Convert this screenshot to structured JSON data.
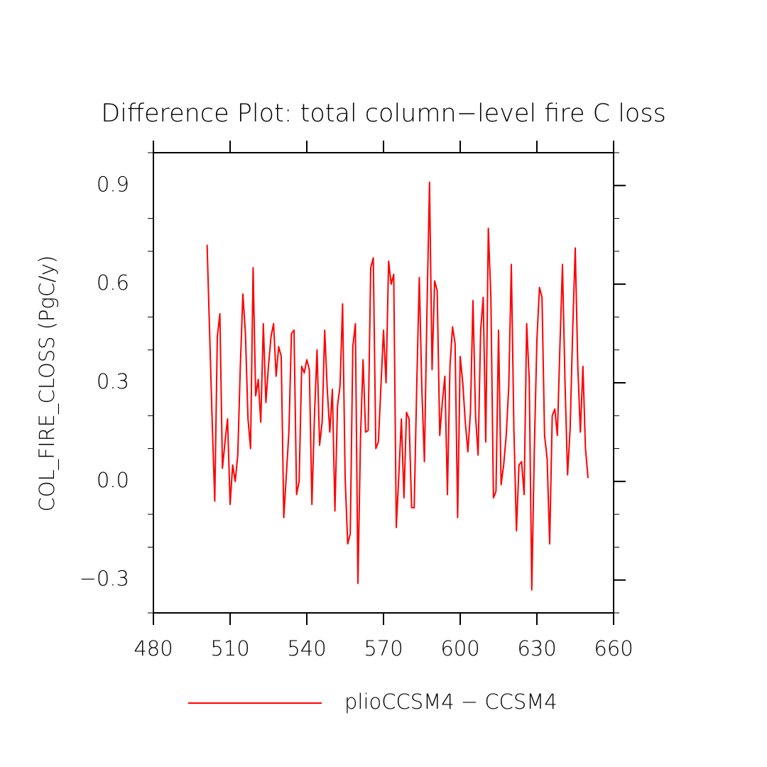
{
  "chart_data": {
    "type": "line",
    "title": "Difference Plot: total column−level fire C loss",
    "y_label": "COL_FIRE_CLOSS  (PgC/y)",
    "x": [
      501,
      502,
      503,
      504,
      505,
      506,
      507,
      508,
      509,
      510,
      511,
      512,
      513,
      514,
      515,
      516,
      517,
      518,
      519,
      520,
      521,
      522,
      523,
      524,
      525,
      526,
      527,
      528,
      529,
      530,
      531,
      532,
      533,
      534,
      535,
      536,
      537,
      538,
      539,
      540,
      541,
      542,
      543,
      544,
      545,
      546,
      547,
      548,
      549,
      550,
      551,
      552,
      553,
      554,
      555,
      556,
      557,
      558,
      559,
      560,
      561,
      562,
      563,
      564,
      565,
      566,
      567,
      568,
      569,
      570,
      571,
      572,
      573,
      574,
      575,
      576,
      577,
      578,
      579,
      580,
      581,
      582,
      583,
      584,
      585,
      586,
      587,
      588,
      589,
      590,
      591,
      592,
      593,
      594,
      595,
      596,
      597,
      598,
      599,
      600,
      601,
      602,
      603,
      604,
      605,
      606,
      607,
      608,
      609,
      610,
      611,
      612,
      613,
      614,
      615,
      616,
      617,
      618,
      619,
      620,
      621,
      622,
      623,
      624,
      625,
      626,
      627,
      628,
      629,
      630,
      631,
      632,
      633,
      634,
      635,
      636,
      637,
      638,
      639,
      640,
      641,
      642,
      643,
      644,
      645,
      646,
      647,
      648,
      649,
      650
    ],
    "series": [
      {
        "name": "plioCCSM4 − CCSM4",
        "color": "#ff0000",
        "values": [
          0.72,
          0.45,
          0.18,
          -0.06,
          0.44,
          0.51,
          0.04,
          0.12,
          0.19,
          -0.07,
          0.05,
          0.0,
          0.08,
          0.35,
          0.57,
          0.45,
          0.19,
          0.1,
          0.65,
          0.26,
          0.31,
          0.18,
          0.48,
          0.24,
          0.35,
          0.44,
          0.48,
          0.32,
          0.41,
          0.38,
          -0.11,
          0.02,
          0.15,
          0.45,
          0.46,
          -0.04,
          0.0,
          0.35,
          0.33,
          0.37,
          0.34,
          -0.07,
          0.2,
          0.4,
          0.11,
          0.18,
          0.46,
          0.28,
          0.15,
          0.28,
          -0.09,
          0.23,
          0.29,
          0.54,
          0.01,
          -0.19,
          -0.16,
          0.41,
          0.48,
          -0.31,
          0.13,
          0.37,
          0.15,
          0.155,
          0.65,
          0.68,
          0.1,
          0.12,
          0.29,
          0.46,
          0.3,
          0.67,
          0.6,
          0.63,
          -0.14,
          0.02,
          0.19,
          -0.05,
          0.21,
          0.19,
          -0.08,
          -0.08,
          0.29,
          0.62,
          0.28,
          0.06,
          0.52,
          0.91,
          0.34,
          0.61,
          0.58,
          0.14,
          0.24,
          0.32,
          -0.04,
          0.35,
          0.47,
          0.42,
          -0.11,
          0.38,
          0.3,
          0.18,
          0.09,
          0.21,
          0.55,
          0.2,
          0.08,
          0.46,
          0.56,
          0.12,
          0.77,
          0.56,
          -0.05,
          -0.03,
          0.46,
          -0.01,
          0.05,
          0.14,
          0.29,
          0.66,
          0.16,
          -0.15,
          0.05,
          0.06,
          -0.04,
          0.48,
          0.31,
          -0.33,
          0.1,
          0.43,
          0.59,
          0.56,
          0.14,
          0.07,
          -0.19,
          0.2,
          0.22,
          0.14,
          0.41,
          0.66,
          0.3,
          0.02,
          0.16,
          0.46,
          0.71,
          0.35,
          0.15,
          0.35,
          0.1,
          0.01
        ]
      }
    ],
    "xlim": [
      480,
      660
    ],
    "xticks": [
      480,
      510,
      540,
      570,
      600,
      630,
      660
    ],
    "ylim": [
      -0.4,
      1.0
    ],
    "yticks": [
      {
        "value": -0.3,
        "label": "−0.3"
      },
      {
        "value": 0,
        "label": "0.0"
      },
      0.3,
      0.6,
      0.9
    ],
    "yminorticks": [
      -0.4,
      -0.2,
      -0.1,
      0.1,
      0.2,
      0.4,
      0.5,
      0.7,
      0.8,
      1.0
    ],
    "grid": false
  }
}
